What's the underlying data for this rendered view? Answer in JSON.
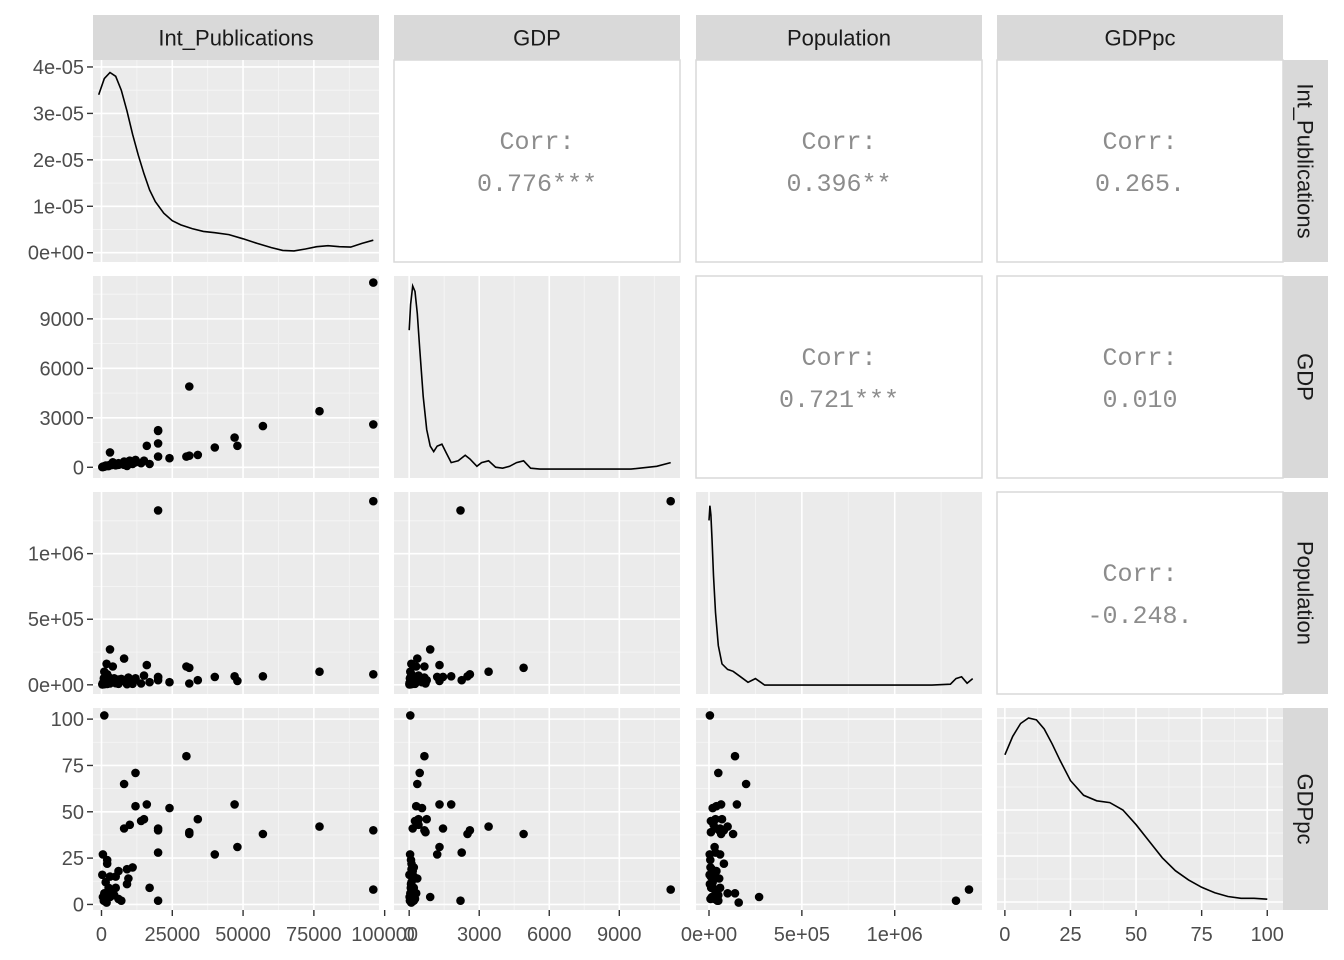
{
  "chart_data": {
    "type": "scatter-matrix",
    "variables": [
      "Int_Publications",
      "GDP",
      "Population",
      "GDPpc"
    ],
    "correlations": [
      {
        "row": "Int_Publications",
        "col": "GDP",
        "label": "Corr:",
        "value": "0.776***"
      },
      {
        "row": "Int_Publications",
        "col": "Population",
        "label": "Corr:",
        "value": "0.396**"
      },
      {
        "row": "Int_Publications",
        "col": "GDPpc",
        "label": "Corr:",
        "value": "0.265."
      },
      {
        "row": "GDP",
        "col": "Population",
        "label": "Corr:",
        "value": "0.721***"
      },
      {
        "row": "GDP",
        "col": "GDPpc",
        "label": "Corr:",
        "value": "0.010"
      },
      {
        "row": "Population",
        "col": "GDPpc",
        "label": "Corr:",
        "value": "-0.248."
      }
    ],
    "axes": {
      "Int_Publications": {
        "range": [
          -3000,
          98000
        ],
        "ticks": [
          0,
          25000,
          50000,
          75000,
          100000
        ],
        "tick_labels": [
          "0",
          "25000",
          "50000",
          "75000",
          "100000"
        ]
      },
      "GDP": {
        "range": [
          -650,
          11600
        ],
        "ticks": [
          0,
          3000,
          6000,
          9000
        ],
        "tick_labels": [
          "0",
          "3000",
          "6000",
          "9000"
        ]
      },
      "Population": {
        "range": [
          -70000,
          1470000
        ],
        "ticks": [
          0,
          500000,
          1000000
        ],
        "tick_labels": [
          "0e+00",
          "5e+05",
          "1e+06"
        ]
      },
      "GDPpc": {
        "range": [
          -3,
          106
        ],
        "ticks": [
          0,
          25,
          50,
          75,
          100
        ],
        "tick_labels": [
          "0",
          "25",
          "50",
          "75",
          "100"
        ]
      }
    },
    "density_axis": {
      "range": [
        -2e-06,
        4.15e-05
      ],
      "ticks": [
        0,
        1e-05,
        2e-05,
        3e-05,
        4e-05
      ],
      "tick_labels": [
        "0e+00",
        "1e-05",
        "2e-05",
        "3e-05",
        "4e-05"
      ]
    },
    "densities": {
      "Int_Publications": {
        "x": [
          -1000,
          1000,
          3000,
          5000,
          7000,
          9000,
          11000,
          13000,
          15000,
          17000,
          19000,
          22000,
          25000,
          28000,
          32000,
          36000,
          40000,
          45000,
          50000,
          55000,
          60000,
          64000,
          68000,
          72000,
          76000,
          80000,
          84000,
          88000,
          92000,
          96000
        ],
        "y": [
          3.4e-05,
          3.75e-05,
          3.88e-05,
          3.8e-05,
          3.5e-05,
          3.05e-05,
          2.55e-05,
          2.1e-05,
          1.7e-05,
          1.35e-05,
          1.1e-05,
          8.5e-06,
          6.9e-06,
          6e-06,
          5.2e-06,
          4.6e-06,
          4.3e-06,
          3.9e-06,
          3e-06,
          2e-06,
          1.1e-06,
          5e-07,
          4e-07,
          8e-07,
          1.3e-06,
          1.5e-06,
          1.3e-06,
          1.2e-06,
          2e-06,
          2.7e-06
        ]
      },
      "GDP": {
        "x": [
          0,
          60,
          150,
          250,
          350,
          450,
          600,
          750,
          900,
          1050,
          1200,
          1400,
          1600,
          1800,
          2100,
          2400,
          2600,
          2900,
          3100,
          3400,
          3700,
          4000,
          4300,
          4600,
          4900,
          5200,
          5600,
          6500,
          8000,
          9500,
          10600,
          11200
        ],
        "y": [
          0.76,
          0.9,
          1.0,
          0.97,
          0.85,
          0.66,
          0.4,
          0.22,
          0.13,
          0.1,
          0.13,
          0.14,
          0.09,
          0.04,
          0.05,
          0.08,
          0.06,
          0.02,
          0.04,
          0.05,
          0.015,
          0.01,
          0.02,
          0.04,
          0.05,
          0.01,
          0.005,
          0.005,
          0.005,
          0.005,
          0.02,
          0.04
        ]
      },
      "Population": {
        "x": [
          0,
          5000,
          10000,
          16000,
          24000,
          35000,
          50000,
          70000,
          100000,
          130000,
          170000,
          210000,
          250000,
          300000,
          400000,
          600000,
          800000,
          1000000,
          1200000,
          1300000,
          1330000,
          1360000,
          1390000,
          1420000
        ],
        "y": [
          0.9,
          0.98,
          0.93,
          0.8,
          0.6,
          0.4,
          0.22,
          0.12,
          0.09,
          0.08,
          0.05,
          0.02,
          0.04,
          0.005,
          0.005,
          0.005,
          0.005,
          0.005,
          0.005,
          0.01,
          0.04,
          0.05,
          0.015,
          0.04
        ]
      },
      "GDPpc": {
        "x": [
          0,
          3,
          6,
          9,
          12,
          15,
          18,
          21,
          25,
          30,
          35,
          40,
          45,
          50,
          55,
          60,
          65,
          70,
          75,
          80,
          85,
          90,
          95,
          100
        ],
        "y": [
          0.8,
          0.9,
          0.97,
          1.0,
          0.99,
          0.94,
          0.86,
          0.77,
          0.66,
          0.58,
          0.55,
          0.54,
          0.5,
          0.42,
          0.33,
          0.24,
          0.17,
          0.12,
          0.08,
          0.05,
          0.03,
          0.02,
          0.02,
          0.015
        ]
      }
    },
    "points": [
      {
        "Int_Publications": 96000,
        "GDP": 11200,
        "Population": 1400000,
        "GDPpc": 8
      },
      {
        "Int_Publications": 20000,
        "GDP": 2200,
        "Population": 1330000,
        "GDPpc": 2
      },
      {
        "Int_Publications": 96000,
        "GDP": 2600,
        "Population": 80000,
        "GDPpc": 40
      },
      {
        "Int_Publications": 77000,
        "GDP": 3400,
        "Population": 100000,
        "GDPpc": 42
      },
      {
        "Int_Publications": 31000,
        "GDP": 4900,
        "Population": 130000,
        "GDPpc": 38
      },
      {
        "Int_Publications": 57000,
        "GDP": 2500,
        "Population": 65000,
        "GDPpc": 38
      },
      {
        "Int_Publications": 47000,
        "GDP": 1800,
        "Population": 65000,
        "GDPpc": 54
      },
      {
        "Int_Publications": 48000,
        "GDP": 1300,
        "Population": 30000,
        "GDPpc": 31
      },
      {
        "Int_Publications": 40000,
        "GDP": 1200,
        "Population": 60000,
        "GDPpc": 27
      },
      {
        "Int_Publications": 20000,
        "GDP": 2250,
        "Population": 35000,
        "GDPpc": 28
      },
      {
        "Int_Publications": 20000,
        "GDP": 1450,
        "Population": 60000,
        "GDPpc": 41
      },
      {
        "Int_Publications": 30000,
        "GDP": 650,
        "Population": 140000,
        "GDPpc": 80
      },
      {
        "Int_Publications": 31000,
        "GDP": 700,
        "Population": 10000,
        "GDPpc": 39
      },
      {
        "Int_Publications": 34000,
        "GDP": 750,
        "Population": 35000,
        "GDPpc": 46
      },
      {
        "Int_Publications": 24000,
        "GDP": 550,
        "Population": 20000,
        "GDPpc": 52
      },
      {
        "Int_Publications": 16000,
        "GDP": 1300,
        "Population": 150000,
        "GDPpc": 54
      },
      {
        "Int_Publications": 15000,
        "GDP": 400,
        "Population": 70000,
        "GDPpc": 46
      },
      {
        "Int_Publications": 20000,
        "GDP": 650,
        "Population": 55000,
        "GDPpc": 40
      },
      {
        "Int_Publications": 12000,
        "GDP": 450,
        "Population": 50000,
        "GDPpc": 71
      },
      {
        "Int_Publications": 12000,
        "GDP": 300,
        "Population": 40000,
        "GDPpc": 53
      },
      {
        "Int_Publications": 10000,
        "GDP": 400,
        "Population": 25000,
        "GDPpc": 43
      },
      {
        "Int_Publications": 8000,
        "GDP": 350,
        "Population": 200000,
        "GDPpc": 65
      },
      {
        "Int_Publications": 3000,
        "GDP": 900,
        "Population": 270000,
        "GDPpc": 4
      },
      {
        "Int_Publications": 14000,
        "GDP": 250,
        "Population": 10000,
        "GDPpc": 45
      },
      {
        "Int_Publications": 17000,
        "GDP": 200,
        "Population": 20000,
        "GDPpc": 9
      },
      {
        "Int_Publications": 8000,
        "GDP": 150,
        "Population": 30000,
        "GDPpc": 41
      },
      {
        "Int_Publications": 11000,
        "GDP": 200,
        "Population": 8000,
        "GDPpc": 20
      },
      {
        "Int_Publications": 9000,
        "GDP": 100,
        "Population": 15000,
        "GDPpc": 19
      },
      {
        "Int_Publications": 9000,
        "GDP": 80,
        "Population": 5000,
        "GDPpc": 11
      },
      {
        "Int_Publications": 6000,
        "GDP": 150,
        "Population": 40000,
        "GDPpc": 18
      },
      {
        "Int_Publications": 5000,
        "GDP": 200,
        "Population": 25000,
        "GDPpc": 15
      },
      {
        "Int_Publications": 1000,
        "GDP": 50,
        "Population": 5000,
        "GDPpc": 102
      },
      {
        "Int_Publications": 500,
        "GDP": 40,
        "Population": 4000,
        "GDPpc": 27
      },
      {
        "Int_Publications": 2000,
        "GDP": 100,
        "Population": 80000,
        "GDPpc": 22
      },
      {
        "Int_Publications": 3000,
        "GDP": 150,
        "Population": 10000,
        "GDPpc": 15
      },
      {
        "Int_Publications": 1500,
        "GDP": 100,
        "Population": 20000,
        "GDPpc": 12
      },
      {
        "Int_Publications": 2500,
        "GDP": 70,
        "Population": 60000,
        "GDPpc": 9
      },
      {
        "Int_Publications": 1000,
        "GDP": 50,
        "Population": 100000,
        "GDPpc": 6
      },
      {
        "Int_Publications": 500,
        "GDP": 20,
        "Population": 15000,
        "GDPpc": 4
      },
      {
        "Int_Publications": 800,
        "GDP": 30,
        "Population": 50000,
        "GDPpc": 2
      },
      {
        "Int_Publications": 1200,
        "GDP": 60,
        "Population": 30000,
        "GDPpc": 3
      },
      {
        "Int_Publications": 4000,
        "GDP": 300,
        "Population": 140000,
        "GDPpc": 6
      },
      {
        "Int_Publications": 5000,
        "GDP": 120,
        "Population": 12000,
        "GDPpc": 9
      },
      {
        "Int_Publications": 6000,
        "GDP": 250,
        "Population": 8000,
        "GDPpc": 3
      },
      {
        "Int_Publications": 7000,
        "GDP": 200,
        "Population": 45000,
        "GDPpc": 2
      },
      {
        "Int_Publications": 300,
        "GDP": 10,
        "Population": 3000,
        "GDPpc": 16
      },
      {
        "Int_Publications": 2000,
        "GDP": 80,
        "Population": 7000,
        "GDPpc": 24
      },
      {
        "Int_Publications": 3500,
        "GDP": 130,
        "Population": 35000,
        "GDPpc": 7
      },
      {
        "Int_Publications": 1800,
        "GDP": 90,
        "Population": 160000,
        "GDPpc": 1
      },
      {
        "Int_Publications": 4500,
        "GDP": 180,
        "Population": 50000,
        "GDPpc": 5
      },
      {
        "Int_Publications": 9500,
        "GDP": 350,
        "Population": 55000,
        "GDPpc": 14
      }
    ]
  }
}
